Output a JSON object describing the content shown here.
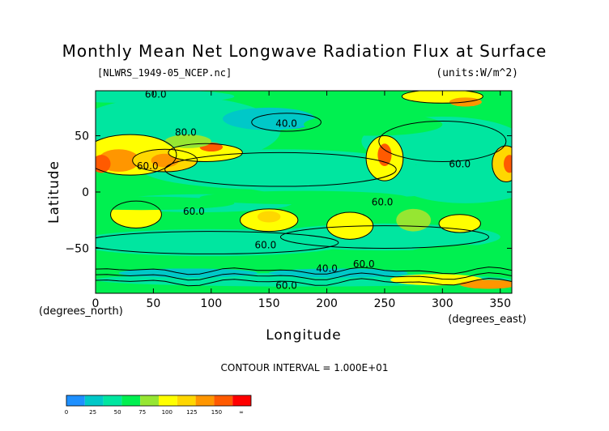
{
  "chart_data": {
    "type": "heatmap",
    "title": "Monthly Mean Net Longwave Radiation Flux at Surface",
    "source_label": "[NLWRS_1949-05_NCEP.nc]",
    "units_label": "(units:W/m^2)",
    "xlabel": "Longitude",
    "ylabel": "Latitude",
    "x_unit_label": "(degrees_east)",
    "y_unit_label": "(degrees_north)",
    "xlim": [
      0,
      360
    ],
    "ylim": [
      -90,
      90
    ],
    "x_ticks": [
      0,
      50,
      100,
      150,
      200,
      250,
      300,
      350
    ],
    "y_ticks": [
      50,
      0,
      -50
    ],
    "y_tick_labels": [
      "50",
      "0",
      "−50"
    ],
    "contour_interval_text": "CONTOUR INTERVAL = 1.000E+01",
    "contour_labels": [
      {
        "text": "60.0",
        "lon": 52,
        "lat": 84
      },
      {
        "text": "40.0",
        "lon": 165,
        "lat": 58
      },
      {
        "text": "80.0",
        "lon": 78,
        "lat": 50
      },
      {
        "text": "60.0",
        "lon": 45,
        "lat": 20
      },
      {
        "text": "60.0",
        "lon": 315,
        "lat": 22
      },
      {
        "text": "60.0",
        "lon": 85,
        "lat": -20
      },
      {
        "text": "60.0",
        "lon": 248,
        "lat": -12
      },
      {
        "text": "60.0",
        "lon": 147,
        "lat": -50
      },
      {
        "text": "40.0",
        "lon": 200,
        "lat": -71
      },
      {
        "text": "60.0",
        "lon": 232,
        "lat": -67
      },
      {
        "text": "60.0",
        "lon": 165,
        "lat": -86
      }
    ],
    "colorbar": {
      "labels": [
        "0",
        "25",
        "50",
        "75",
        "100",
        "125",
        "150",
        "∞"
      ],
      "colors": [
        "#1e90ff",
        "#00c8c8",
        "#00e6a0",
        "#00f050",
        "#96e632",
        "#ffff00",
        "#ffd700",
        "#ff9600",
        "#ff5a00",
        "#ff0000"
      ]
    }
  }
}
